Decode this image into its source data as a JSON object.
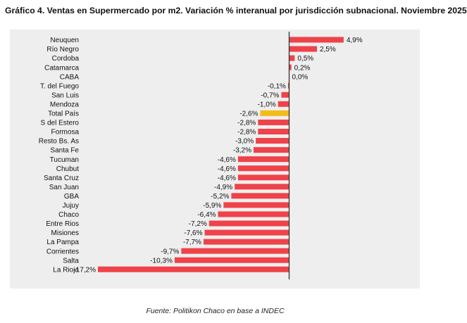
{
  "title": "Gráfico 4. Ventas en Supermercado por m2. Variación % interanual por jurisdicción subnacional. Noviembre 2025",
  "source": "Fuente: Politikon Chaco en base a INDEC",
  "colors": {
    "bar": "#ef4249",
    "highlight": "#f2bd17",
    "axis": "#333333",
    "background": "#eeeeee"
  },
  "chart_data": {
    "type": "bar",
    "orientation": "horizontal",
    "title": "Gráfico 4. Ventas en Supermercado por m2. Variación % interanual por jurisdicción subnacional. Noviembre 2025",
    "categories": [
      "Neuquen",
      "Río Negro",
      "Cordoba",
      "Catamarca",
      "CABA",
      "T. del Fuego",
      "San Luis",
      "Mendoza",
      "Total País",
      "S del Estero",
      "Formosa",
      "Resto Bs. As",
      "Santa Fe",
      "Tucuman",
      "Chubut",
      "Santa Cruz",
      "San Juan",
      "GBA",
      "Jujuy",
      "Chaco",
      "Entre Rios",
      "Misiones",
      "La Pampa",
      "Corrientes",
      "Salta",
      "La Rioja"
    ],
    "values": [
      4.9,
      2.5,
      0.5,
      0.2,
      0.0,
      -0.1,
      -0.7,
      -1.0,
      -2.6,
      -2.8,
      -2.8,
      -3.0,
      -3.2,
      -4.6,
      -4.6,
      -4.6,
      -4.9,
      -5.2,
      -5.9,
      -6.4,
      -7.2,
      -7.6,
      -7.7,
      -9.7,
      -10.3,
      -17.2
    ],
    "labels": [
      "4,9%",
      "2,5%",
      "0,5%",
      "0,2%",
      "0,0%",
      "-0,1%",
      "-0,7%",
      "-1,0%",
      "-2,6%",
      "-2,8%",
      "-2,8%",
      "-3,0%",
      "-3,2%",
      "-4,6%",
      "-4,6%",
      "-4,6%",
      "-4,9%",
      "-5,2%",
      "-5,9%",
      "-6,4%",
      "-7,2%",
      "-7,6%",
      "-7,7%",
      "-9,7%",
      "-10,3%",
      "-17,2%"
    ],
    "highlight": "Total País",
    "xlim": [
      -17.2,
      4.9
    ],
    "grid": false,
    "legend": "none"
  }
}
